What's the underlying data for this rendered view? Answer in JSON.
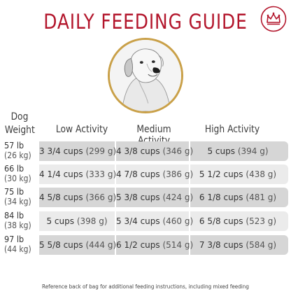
{
  "title": "DAILY FEEDING GUIDE",
  "brand": {
    "logo": "crown-logo-icon",
    "color": "#b3162c"
  },
  "accent_colors": {
    "title_red": "#b3162c",
    "ring_gold": "#c9a048",
    "band_dark": "#d6d6d6",
    "band_light": "#ebebeb"
  },
  "image": {
    "subject": "dog-portrait-icon"
  },
  "table": {
    "headers": {
      "weight_line1": "Dog",
      "weight_line2": "Weight",
      "low": "Low Activity",
      "medium": "Medium Activity",
      "high": "High Activity"
    },
    "rows": [
      {
        "lb": "57 lb",
        "kg": "(26 kg)",
        "low_cups": "3 3/4 cups",
        "low_g": "(299 g)",
        "med_cups": "4 3/8 cups",
        "med_g": "(346 g)",
        "high_cups": "5 cups",
        "high_g": "(394 g)"
      },
      {
        "lb": "66 lb",
        "kg": "(30 kg)",
        "low_cups": "4 1/4 cups",
        "low_g": "(333 g)",
        "med_cups": "4 7/8 cups",
        "med_g": "(386 g)",
        "high_cups": "5 1/2 cups",
        "high_g": "(438 g)"
      },
      {
        "lb": "75 lb",
        "kg": "(34 kg)",
        "low_cups": "4 5/8 cups",
        "low_g": "(366 g)",
        "med_cups": "5 3/8 cups",
        "med_g": "(424 g)",
        "high_cups": "6 1/8 cups",
        "high_g": "(481 g)"
      },
      {
        "lb": "84 lb",
        "kg": "(38 kg)",
        "low_cups": "5 cups",
        "low_g": "(398 g)",
        "med_cups": "5 3/4 cups",
        "med_g": "(460 g)",
        "high_cups": "6 5/8 cups",
        "high_g": "(523 g)"
      },
      {
        "lb": "97 lb",
        "kg": "(44 kg)",
        "low_cups": "5 5/8 cups",
        "low_g": "(444 g)",
        "med_cups": "6 1/2 cups",
        "med_g": "(514 g)",
        "high_cups": "7 3/8 cups",
        "high_g": "(584 g)"
      }
    ]
  },
  "footnote": "Reference back of bag for additional feeding instructions, including mixed feeding"
}
